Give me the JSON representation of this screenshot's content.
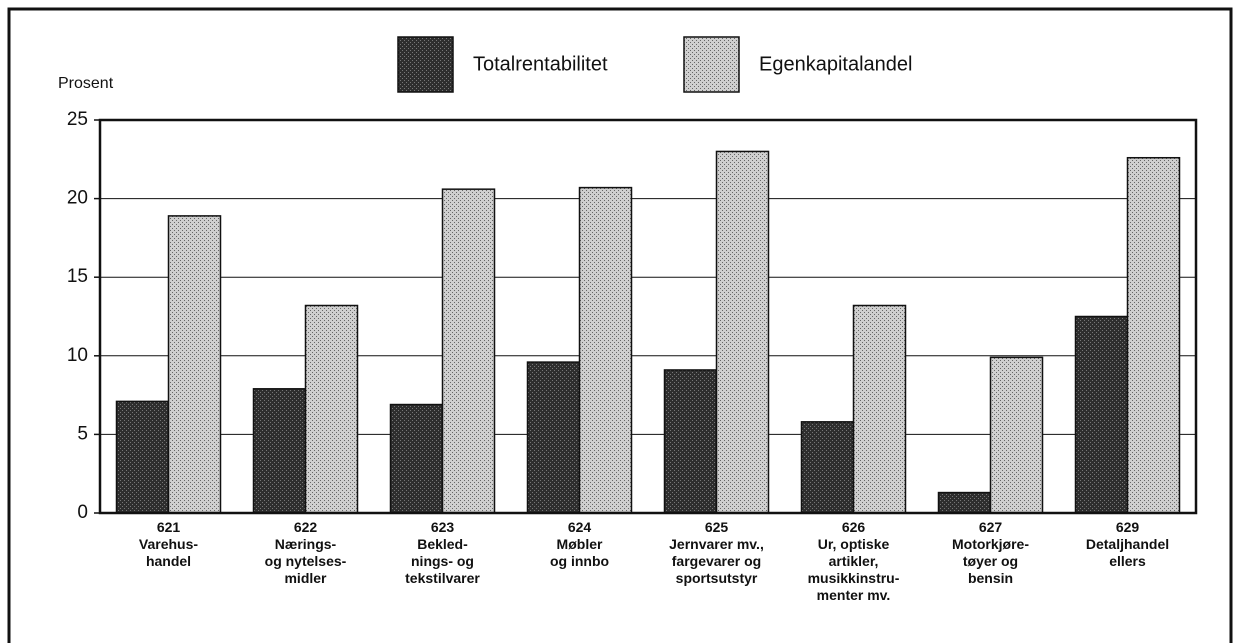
{
  "chart_data": {
    "type": "bar",
    "y_label": "Prosent",
    "categories": [
      "621\nVarehus-\nhandel",
      "622\nNærings-\nog nytelses-\nmidler",
      "623\nBekled-\nnings- og\ntekstilvarer",
      "624\nMøbler\nog innbo",
      "625\nJernvarer mv.,\nfargevarer og\nsportsutstyr",
      "626\nUr, optiske\nartikler,\nmusikkinstru-\nmenter mv.",
      "627\nMotorkjøre-\ntøyer og\nbensin",
      "629\nDetaljhandel\nellers"
    ],
    "series": [
      {
        "name": "Totalrentabilitet",
        "color": "#2e2e2e",
        "values": [
          7.1,
          7.9,
          6.9,
          9.6,
          9.1,
          5.8,
          1.3,
          12.5
        ]
      },
      {
        "name": "Egenkapitalandel",
        "color": "#cfcfcf",
        "values": [
          18.9,
          13.2,
          20.6,
          20.7,
          23.0,
          13.2,
          9.9,
          22.6
        ]
      }
    ],
    "ylim": [
      0,
      25
    ],
    "yticks": [
      0,
      5,
      10,
      15,
      20,
      25
    ],
    "grid": true
  }
}
